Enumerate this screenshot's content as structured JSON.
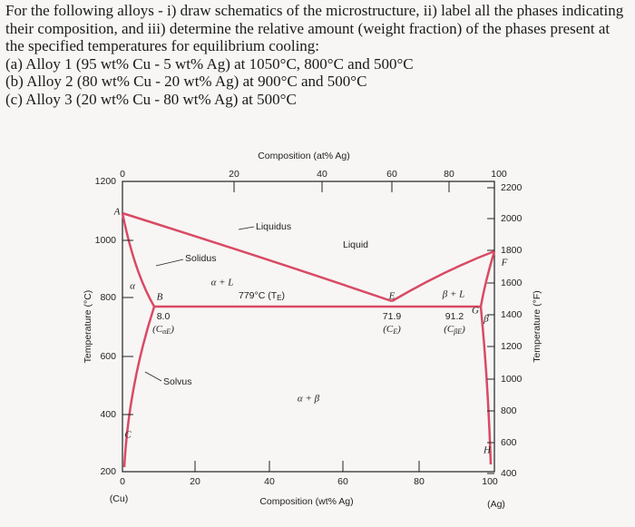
{
  "question": {
    "intro": "For the following alloys - i) draw schematics of the microstructure, ii) label all the phases indicating their composition, and iii) determine the relative amount (weight fraction) of the phases present at the specified temperatures for equilibrium cooling:",
    "items": [
      "(a) Alloy 1 (95 wt% Cu - 5 wt% Ag) at 1050°C, 800°C and 500°C",
      "(b) Alloy 2 (80 wt% Cu - 20 wt% Ag) at 900°C and 500°C",
      "(c) Alloy 3 (20 wt% Cu - 80 wt% Ag) at 500°C"
    ]
  },
  "diagram": {
    "top_axis_title": "Composition (at% Ag)",
    "bottom_axis_title": "Composition (wt% Ag)",
    "left_axis_title": "Temperature (°C)",
    "right_axis_title": "Temperature (°F)",
    "top_ticks": [
      0,
      20,
      40,
      60,
      80,
      100
    ],
    "bottom_ticks": [
      0,
      20,
      40,
      60,
      80,
      100
    ],
    "left_ticks": [
      1200,
      1000,
      800,
      600,
      400,
      200
    ],
    "right_ticks": [
      2200,
      2000,
      1800,
      1600,
      1400,
      1200,
      1000,
      800,
      600,
      400
    ],
    "left_end": "(Cu)",
    "right_end": "(Ag)",
    "regions": {
      "liquid": "Liquid",
      "alpha_l": "α + L",
      "beta_l": "β + L",
      "alpha_beta": "α + β",
      "alpha": "α",
      "beta": "β"
    },
    "curves": {
      "liquidus": "Liquidus",
      "solidus": "Solidus",
      "solvus": "Solvus"
    },
    "points": [
      "A",
      "B",
      "C",
      "E",
      "F",
      "G",
      "H"
    ],
    "eutectic": {
      "text": "779°C (T",
      "sub": "E",
      "close": ")"
    },
    "compositions": [
      {
        "value": "8.0",
        "symbol": "(C",
        "sub": "αE",
        "close": ")"
      },
      {
        "value": "71.9",
        "symbol": "(C",
        "sub": "E",
        "close": ")"
      },
      {
        "value": "91.2",
        "symbol": "(C",
        "sub": "βE",
        "close": ")"
      }
    ]
  }
}
